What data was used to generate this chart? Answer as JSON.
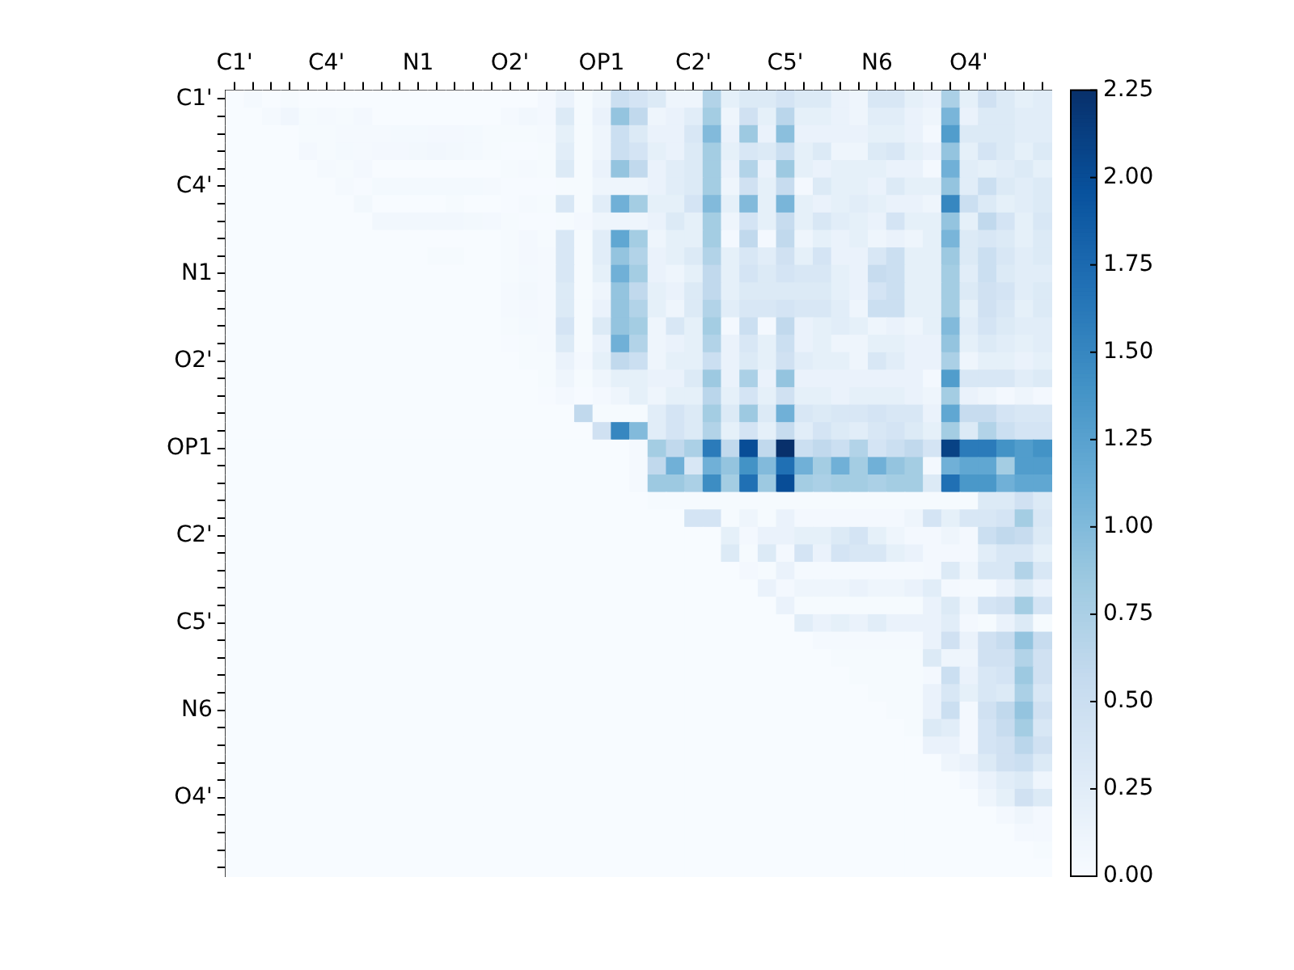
{
  "chart_data": {
    "type": "heatmap",
    "categories": [
      "C1'",
      null,
      null,
      null,
      null,
      "C4'",
      null,
      null,
      null,
      null,
      "N1",
      null,
      null,
      null,
      null,
      "O2'",
      null,
      null,
      null,
      null,
      "OP1",
      null,
      null,
      null,
      null,
      "C2'",
      null,
      null,
      null,
      null,
      "C5'",
      null,
      null,
      null,
      null,
      "N6",
      null,
      null,
      null,
      null,
      "O4'",
      null,
      null,
      null,
      null
    ],
    "y_categories": [
      "C1'",
      null,
      null,
      null,
      null,
      "C4'",
      null,
      null,
      null,
      null,
      "N1",
      null,
      null,
      null,
      null,
      "O2'",
      null,
      null,
      null,
      null,
      "OP1",
      null,
      null,
      null,
      null,
      "C2'",
      null,
      null,
      null,
      null,
      "C5'",
      null,
      null,
      null,
      null,
      "N6",
      null,
      null,
      null,
      null,
      "O4'",
      null,
      null,
      null,
      null
    ],
    "clim": [
      0,
      2.25
    ],
    "cticks": [
      {
        "value": 0,
        "label": "0.00"
      },
      {
        "value": 0.25,
        "label": "0.25"
      },
      {
        "value": 0.5,
        "label": "0.50"
      },
      {
        "value": 0.75,
        "label": "0.75"
      },
      {
        "value": 1,
        "label": "1.00"
      },
      {
        "value": 1.25,
        "label": "1.25"
      },
      {
        "value": 1.5,
        "label": "1.50"
      },
      {
        "value": 1.75,
        "label": "1.75"
      },
      {
        "value": 2,
        "label": "2.00"
      },
      {
        "value": 2.25,
        "label": "2.25"
      }
    ],
    "cells": [
      [
        0,
        0.03,
        0,
        0.02,
        0,
        0,
        0,
        0,
        0,
        0,
        0,
        0,
        0,
        0,
        0,
        0,
        0,
        0.05,
        0.15,
        0.02,
        0.1,
        0.5,
        0.4,
        0.3,
        0.1,
        0.1,
        0.7,
        0.2,
        0.3,
        0.3,
        0.4,
        0.3,
        0.3,
        0.15,
        0.1,
        0.35,
        0.35,
        0.2,
        0.15,
        0.75,
        0.2,
        0.45,
        0.3,
        0.2,
        0.25
      ],
      [
        0,
        0,
        0.03,
        0.08,
        0.02,
        0.03,
        0.02,
        0.05,
        0,
        0,
        0,
        0,
        0,
        0,
        0,
        0.03,
        0.07,
        0.05,
        0.3,
        0.02,
        0.15,
        0.9,
        0.6,
        0.1,
        0.15,
        0.25,
        0.8,
        0.1,
        0.45,
        0.2,
        0.65,
        0.2,
        0.2,
        0.15,
        0.1,
        0.25,
        0.25,
        0.15,
        0.1,
        1.05,
        0.15,
        0.3,
        0.3,
        0.25,
        0.25
      ],
      [
        0,
        0,
        0,
        0,
        0.02,
        0.02,
        0.03,
        0.03,
        0.03,
        0.04,
        0.04,
        0.05,
        0.05,
        0.04,
        0.02,
        0.02,
        0.02,
        0.03,
        0.2,
        0.02,
        0.1,
        0.5,
        0.3,
        0.15,
        0.15,
        0.35,
        1.0,
        0.15,
        0.85,
        0.15,
        0.95,
        0.15,
        0.15,
        0.15,
        0.15,
        0.2,
        0.2,
        0.15,
        0.05,
        1.3,
        0.3,
        0.3,
        0.3,
        0.25,
        0.25
      ],
      [
        0,
        0,
        0,
        0,
        0.05,
        0.02,
        0.04,
        0.03,
        0.05,
        0.05,
        0.06,
        0.07,
        0.06,
        0.04,
        0.02,
        0.01,
        0.01,
        0.02,
        0.25,
        0.02,
        0.1,
        0.5,
        0.4,
        0.2,
        0.15,
        0.3,
        0.8,
        0.2,
        0.35,
        0.3,
        0.5,
        0.2,
        0.3,
        0.1,
        0.1,
        0.3,
        0.35,
        0.2,
        0.15,
        0.9,
        0.2,
        0.4,
        0.3,
        0.2,
        0.3
      ],
      [
        0,
        0,
        0,
        0,
        0,
        0.03,
        0.02,
        0.05,
        0,
        0,
        0,
        0,
        0,
        0,
        0,
        0.02,
        0.03,
        0.02,
        0.3,
        0.02,
        0.15,
        0.9,
        0.6,
        0.15,
        0.25,
        0.3,
        0.8,
        0.15,
        0.7,
        0.15,
        0.85,
        0.2,
        0.15,
        0.2,
        0.2,
        0.2,
        0.15,
        0.15,
        0.05,
        1.1,
        0.25,
        0.2,
        0.25,
        0.3,
        0.2
      ],
      [
        0,
        0,
        0,
        0,
        0,
        0,
        0.03,
        0.01,
        0.04,
        0.04,
        0.04,
        0.04,
        0.04,
        0.04,
        0.03,
        0.01,
        0.01,
        0.01,
        0.02,
        0.02,
        0.1,
        0.1,
        0.1,
        0.15,
        0.25,
        0.3,
        0.8,
        0.1,
        0.45,
        0.2,
        0.55,
        0.05,
        0.3,
        0.2,
        0.2,
        0.15,
        0.3,
        0.2,
        0.2,
        0.9,
        0.25,
        0.5,
        0.3,
        0.25,
        0.3
      ],
      [
        0,
        0,
        0,
        0,
        0,
        0,
        0,
        0.06,
        0,
        0,
        0,
        0,
        0.02,
        0,
        0,
        0.01,
        0.03,
        0.02,
        0.35,
        0.02,
        0.25,
        1.1,
        0.8,
        0.2,
        0.2,
        0.4,
        1.0,
        0.2,
        1.0,
        0.2,
        1.05,
        0.2,
        0.15,
        0.2,
        0.25,
        0.2,
        0.15,
        0.15,
        0.1,
        1.5,
        0.5,
        0.3,
        0.2,
        0.25,
        0.3
      ],
      [
        0,
        0,
        0,
        0,
        0,
        0,
        0,
        0,
        0.07,
        0.07,
        0.07,
        0.07,
        0.07,
        0.06,
        0.05,
        0.02,
        0.01,
        0.01,
        0.02,
        0.05,
        0.1,
        0.1,
        0.1,
        0.15,
        0.3,
        0.2,
        0.8,
        0.1,
        0.4,
        0.2,
        0.55,
        0.2,
        0.35,
        0.25,
        0.2,
        0.15,
        0.4,
        0.2,
        0.2,
        0.9,
        0.2,
        0.6,
        0.4,
        0.2,
        0.35
      ],
      [
        0,
        0,
        0,
        0,
        0,
        0,
        0,
        0,
        0,
        0,
        0,
        0,
        0,
        0,
        0,
        0.02,
        0.05,
        0.02,
        0.35,
        0.02,
        0.25,
        1.2,
        0.8,
        0.1,
        0.2,
        0.2,
        0.8,
        0.05,
        0.6,
        0.05,
        0.6,
        0.1,
        0.2,
        0.15,
        0.2,
        0.1,
        0.15,
        0.1,
        0.2,
        1.05,
        0.3,
        0.35,
        0.3,
        0.2,
        0.3
      ],
      [
        0,
        0,
        0,
        0,
        0,
        0,
        0,
        0,
        0,
        0,
        0,
        0.02,
        0.02,
        0,
        0,
        0.02,
        0.05,
        0.03,
        0.35,
        0.02,
        0.25,
        0.9,
        0.7,
        0.15,
        0.2,
        0.3,
        0.7,
        0.2,
        0.35,
        0.25,
        0.45,
        0.2,
        0.4,
        0.15,
        0.15,
        0.35,
        0.5,
        0.2,
        0.2,
        0.85,
        0.3,
        0.5,
        0.35,
        0.25,
        0.3
      ],
      [
        0,
        0,
        0,
        0,
        0,
        0,
        0,
        0,
        0,
        0,
        0,
        0,
        0,
        0,
        0,
        0.02,
        0.04,
        0.03,
        0.35,
        0.02,
        0.2,
        1.1,
        0.8,
        0.15,
        0.1,
        0.2,
        0.6,
        0.2,
        0.4,
        0.3,
        0.4,
        0.35,
        0.35,
        0.2,
        0.15,
        0.55,
        0.5,
        0.2,
        0.2,
        0.8,
        0.25,
        0.5,
        0.3,
        0.25,
        0.25
      ],
      [
        0,
        0,
        0,
        0,
        0,
        0,
        0,
        0,
        0,
        0,
        0,
        0,
        0,
        0,
        0,
        0.03,
        0.06,
        0.03,
        0.3,
        0.02,
        0.1,
        0.9,
        0.6,
        0.2,
        0.15,
        0.3,
        0.6,
        0.2,
        0.3,
        0.3,
        0.3,
        0.3,
        0.3,
        0.2,
        0.15,
        0.4,
        0.5,
        0.2,
        0.2,
        0.8,
        0.3,
        0.45,
        0.4,
        0.25,
        0.3
      ],
      [
        0,
        0,
        0,
        0,
        0,
        0,
        0,
        0,
        0,
        0,
        0,
        0,
        0,
        0,
        0,
        0.03,
        0.05,
        0.03,
        0.3,
        0.02,
        0.15,
        0.9,
        0.7,
        0.2,
        0.1,
        0.3,
        0.7,
        0.25,
        0.35,
        0.35,
        0.4,
        0.35,
        0.35,
        0.25,
        0.1,
        0.5,
        0.5,
        0.2,
        0.2,
        0.8,
        0.2,
        0.45,
        0.35,
        0.2,
        0.3
      ],
      [
        0,
        0,
        0,
        0,
        0,
        0,
        0,
        0,
        0,
        0,
        0,
        0,
        0,
        0,
        0,
        0.02,
        0.04,
        0.03,
        0.4,
        0.02,
        0.3,
        0.9,
        0.8,
        0.1,
        0.35,
        0.2,
        0.8,
        0.05,
        0.5,
        0.05,
        0.6,
        0.15,
        0.2,
        0.25,
        0.2,
        0.1,
        0.15,
        0.1,
        0.2,
        1.0,
        0.25,
        0.4,
        0.3,
        0.25,
        0.25
      ],
      [
        0,
        0,
        0,
        0,
        0,
        0,
        0,
        0,
        0,
        0,
        0,
        0,
        0,
        0,
        0,
        0.01,
        0.02,
        0.03,
        0.3,
        0.02,
        0.15,
        1.1,
        0.7,
        0.1,
        0.15,
        0.2,
        0.7,
        0.15,
        0.35,
        0.2,
        0.5,
        0.15,
        0.2,
        0.1,
        0.1,
        0.2,
        0.2,
        0.15,
        0.15,
        0.9,
        0.2,
        0.3,
        0.25,
        0.2,
        0.25
      ],
      [
        0,
        0,
        0,
        0,
        0,
        0,
        0,
        0,
        0,
        0,
        0,
        0,
        0,
        0,
        0,
        0,
        0.02,
        0.02,
        0.15,
        0.05,
        0.2,
        0.6,
        0.5,
        0.1,
        0.2,
        0.2,
        0.5,
        0.15,
        0.3,
        0.2,
        0.45,
        0.25,
        0.2,
        0.2,
        0.1,
        0.35,
        0.25,
        0.15,
        0.15,
        0.75,
        0.1,
        0.2,
        0.2,
        0.15,
        0.2
      ],
      [
        0,
        0,
        0,
        0,
        0,
        0,
        0,
        0,
        0,
        0,
        0,
        0,
        0,
        0,
        0,
        0,
        0,
        0.02,
        0.1,
        0.02,
        0.1,
        0.2,
        0.2,
        0.15,
        0.15,
        0.3,
        0.85,
        0.15,
        0.75,
        0.15,
        0.9,
        0.15,
        0.15,
        0.15,
        0.15,
        0.15,
        0.15,
        0.15,
        0.05,
        1.3,
        0.35,
        0.35,
        0.35,
        0.25,
        0.3
      ],
      [
        0,
        0,
        0,
        0,
        0,
        0,
        0,
        0,
        0,
        0,
        0,
        0,
        0,
        0,
        0,
        0,
        0,
        0.01,
        0.05,
        0.01,
        0.05,
        0.1,
        0.2,
        0.1,
        0.2,
        0.2,
        0.65,
        0.2,
        0.4,
        0.2,
        0.45,
        0.2,
        0.2,
        0.15,
        0.2,
        0.2,
        0.2,
        0.15,
        0.1,
        0.8,
        0.15,
        0.1,
        0.05,
        0.1,
        0.05
      ],
      [
        0,
        0,
        0,
        0,
        0,
        0,
        0,
        0,
        0,
        0,
        0,
        0,
        0,
        0,
        0,
        0,
        0,
        0,
        0,
        0.6,
        0.02,
        0.02,
        0.02,
        0.25,
        0.4,
        0.3,
        0.8,
        0.3,
        0.85,
        0.3,
        1.1,
        0.35,
        0.3,
        0.35,
        0.35,
        0.4,
        0.35,
        0.35,
        0.15,
        1.2,
        0.55,
        0.55,
        0.4,
        0.35,
        0.35
      ],
      [
        0,
        0,
        0,
        0,
        0,
        0,
        0,
        0,
        0,
        0,
        0,
        0,
        0,
        0,
        0,
        0,
        0,
        0,
        0,
        0,
        0.45,
        1.5,
        1.0,
        0.25,
        0.4,
        0.3,
        0.7,
        0.2,
        0.4,
        0.2,
        0.55,
        0.25,
        0.4,
        0.3,
        0.25,
        0.35,
        0.4,
        0.3,
        0.2,
        0.8,
        0.3,
        0.7,
        0.5,
        0.4,
        0.4
      ],
      [
        0,
        0,
        0,
        0,
        0,
        0,
        0,
        0,
        0,
        0,
        0,
        0,
        0,
        0,
        0,
        0,
        0,
        0,
        0,
        0,
        0,
        0,
        0.03,
        0.8,
        0.6,
        0.75,
        1.6,
        0.6,
        2.0,
        0.6,
        2.25,
        0.5,
        0.6,
        0.5,
        0.7,
        0.4,
        0.5,
        0.6,
        0.4,
        2.1,
        1.6,
        1.6,
        1.4,
        1.3,
        1.4
      ],
      [
        0,
        0,
        0,
        0,
        0,
        0,
        0,
        0,
        0,
        0,
        0,
        0,
        0,
        0,
        0,
        0,
        0,
        0,
        0,
        0,
        0,
        0,
        0.03,
        0.6,
        1.1,
        0.35,
        1.1,
        0.9,
        1.4,
        1.0,
        1.7,
        1.1,
        0.8,
        1.1,
        0.8,
        1.1,
        0.9,
        0.8,
        0.05,
        1.1,
        1.2,
        1.2,
        0.8,
        1.3,
        1.3
      ],
      [
        0,
        0,
        0,
        0,
        0,
        0,
        0,
        0,
        0,
        0,
        0,
        0,
        0,
        0,
        0,
        0,
        0,
        0,
        0,
        0,
        0,
        0,
        0.03,
        0.85,
        0.85,
        0.75,
        1.45,
        0.8,
        1.7,
        0.85,
        2.0,
        0.8,
        0.75,
        0.8,
        0.8,
        0.75,
        0.8,
        0.8,
        0.3,
        1.7,
        1.35,
        1.35,
        1.1,
        1.2,
        1.2
      ],
      [
        0,
        0,
        0,
        0,
        0,
        0,
        0,
        0,
        0,
        0,
        0,
        0,
        0,
        0,
        0,
        0,
        0,
        0,
        0,
        0,
        0,
        0,
        0,
        0.02,
        0.02,
        0.02,
        0.02,
        0.02,
        0.02,
        0.02,
        0.02,
        0.02,
        0.02,
        0.02,
        0.02,
        0.02,
        0.02,
        0.02,
        0.02,
        0.02,
        0.02,
        0.3,
        0.3,
        0.45,
        0.3
      ],
      [
        0,
        0,
        0,
        0,
        0,
        0,
        0,
        0,
        0,
        0,
        0,
        0,
        0,
        0,
        0,
        0,
        0,
        0,
        0,
        0,
        0,
        0,
        0,
        0,
        0,
        0.4,
        0.4,
        0.02,
        0.1,
        0.02,
        0.15,
        0.05,
        0.05,
        0.05,
        0.05,
        0.05,
        0.05,
        0.1,
        0.4,
        0.2,
        0.35,
        0.35,
        0.4,
        0.8,
        0.35
      ],
      [
        0,
        0,
        0,
        0,
        0,
        0,
        0,
        0,
        0,
        0,
        0,
        0,
        0,
        0,
        0,
        0,
        0,
        0,
        0,
        0,
        0,
        0,
        0,
        0,
        0,
        0,
        0,
        0.2,
        0.05,
        0.15,
        0.15,
        0.2,
        0.2,
        0.3,
        0.4,
        0.2,
        0.1,
        0.05,
        0.05,
        0.1,
        0.05,
        0.5,
        0.6,
        0.55,
        0.3
      ],
      [
        0,
        0,
        0,
        0,
        0,
        0,
        0,
        0,
        0,
        0,
        0,
        0,
        0,
        0,
        0,
        0,
        0,
        0,
        0,
        0,
        0,
        0,
        0,
        0,
        0,
        0,
        0,
        0.3,
        0.02,
        0.3,
        0.05,
        0.4,
        0.15,
        0.4,
        0.35,
        0.35,
        0.2,
        0.15,
        0.05,
        0.05,
        0.05,
        0.25,
        0.35,
        0.35,
        0.2
      ],
      [
        0,
        0,
        0,
        0,
        0,
        0,
        0,
        0,
        0,
        0,
        0,
        0,
        0,
        0,
        0,
        0,
        0,
        0,
        0,
        0,
        0,
        0,
        0,
        0,
        0,
        0,
        0,
        0,
        0.05,
        0.02,
        0.15,
        0.03,
        0.03,
        0.03,
        0.03,
        0.03,
        0.03,
        0.03,
        0.05,
        0.3,
        0.1,
        0.35,
        0.35,
        0.7,
        0.35
      ],
      [
        0,
        0,
        0,
        0,
        0,
        0,
        0,
        0,
        0,
        0,
        0,
        0,
        0,
        0,
        0,
        0,
        0,
        0,
        0,
        0,
        0,
        0,
        0,
        0,
        0,
        0,
        0,
        0,
        0,
        0.15,
        0.05,
        0.1,
        0.1,
        0.1,
        0.15,
        0.1,
        0.1,
        0.15,
        0.25,
        0.05,
        0.03,
        0.03,
        0.15,
        0.3,
        0.15
      ],
      [
        0,
        0,
        0,
        0,
        0,
        0,
        0,
        0,
        0,
        0,
        0,
        0,
        0,
        0,
        0,
        0,
        0,
        0,
        0,
        0,
        0,
        0,
        0,
        0,
        0,
        0,
        0,
        0,
        0,
        0,
        0.15,
        0.02,
        0.02,
        0.02,
        0.02,
        0.02,
        0.02,
        0.02,
        0.15,
        0.3,
        0.1,
        0.4,
        0.45,
        0.8,
        0.4
      ],
      [
        0,
        0,
        0,
        0,
        0,
        0,
        0,
        0,
        0,
        0,
        0,
        0,
        0,
        0,
        0,
        0,
        0,
        0,
        0,
        0,
        0,
        0,
        0,
        0,
        0,
        0,
        0,
        0,
        0,
        0,
        0,
        0.25,
        0.15,
        0.2,
        0.15,
        0.25,
        0.15,
        0.15,
        0.15,
        0.25,
        0.05,
        0.02,
        0.15,
        0.3,
        0.02
      ],
      [
        0,
        0,
        0,
        0,
        0,
        0,
        0,
        0,
        0,
        0,
        0,
        0,
        0,
        0,
        0,
        0,
        0,
        0,
        0,
        0,
        0,
        0,
        0,
        0,
        0,
        0,
        0,
        0,
        0,
        0,
        0,
        0,
        0.03,
        0.03,
        0.03,
        0.03,
        0.03,
        0.03,
        0.15,
        0.45,
        0.15,
        0.45,
        0.55,
        0.9,
        0.55
      ],
      [
        0,
        0,
        0,
        0,
        0,
        0,
        0,
        0,
        0,
        0,
        0,
        0,
        0,
        0,
        0,
        0,
        0,
        0,
        0,
        0,
        0,
        0,
        0,
        0,
        0,
        0,
        0,
        0,
        0,
        0,
        0,
        0,
        0,
        0.02,
        0.02,
        0.02,
        0.02,
        0.02,
        0.3,
        0.1,
        0.1,
        0.45,
        0.45,
        0.7,
        0.45
      ],
      [
        0,
        0,
        0,
        0,
        0,
        0,
        0,
        0,
        0,
        0,
        0,
        0,
        0,
        0,
        0,
        0,
        0,
        0,
        0,
        0,
        0,
        0,
        0,
        0,
        0,
        0,
        0,
        0,
        0,
        0,
        0,
        0,
        0,
        0,
        0.02,
        0.02,
        0.02,
        0.02,
        0.05,
        0.5,
        0.15,
        0.35,
        0.4,
        0.85,
        0.45
      ],
      [
        0,
        0,
        0,
        0,
        0,
        0,
        0,
        0,
        0,
        0,
        0,
        0,
        0,
        0,
        0,
        0,
        0,
        0,
        0,
        0,
        0,
        0,
        0,
        0,
        0,
        0,
        0,
        0,
        0,
        0,
        0,
        0,
        0,
        0,
        0,
        0.02,
        0.02,
        0.02,
        0.15,
        0.35,
        0.2,
        0.35,
        0.3,
        0.75,
        0.35
      ],
      [
        0,
        0,
        0,
        0,
        0,
        0,
        0,
        0,
        0,
        0,
        0,
        0,
        0,
        0,
        0,
        0,
        0,
        0,
        0,
        0,
        0,
        0,
        0,
        0,
        0,
        0,
        0,
        0,
        0,
        0,
        0,
        0,
        0,
        0,
        0,
        0,
        0.02,
        0.02,
        0.15,
        0.5,
        0.05,
        0.45,
        0.6,
        0.9,
        0.45
      ],
      [
        0,
        0,
        0,
        0,
        0,
        0,
        0,
        0,
        0,
        0,
        0,
        0,
        0,
        0,
        0,
        0,
        0,
        0,
        0,
        0,
        0,
        0,
        0,
        0,
        0,
        0,
        0,
        0,
        0,
        0,
        0,
        0,
        0,
        0,
        0,
        0,
        0,
        0.02,
        0.3,
        0.25,
        0.05,
        0.4,
        0.55,
        0.8,
        0.35
      ],
      [
        0,
        0,
        0,
        0,
        0,
        0,
        0,
        0,
        0,
        0,
        0,
        0,
        0,
        0,
        0,
        0,
        0,
        0,
        0,
        0,
        0,
        0,
        0,
        0,
        0,
        0,
        0,
        0,
        0,
        0,
        0,
        0,
        0,
        0,
        0,
        0,
        0,
        0,
        0.15,
        0.15,
        0.05,
        0.4,
        0.45,
        0.65,
        0.45
      ],
      [
        0,
        0,
        0,
        0,
        0,
        0,
        0,
        0,
        0,
        0,
        0,
        0,
        0,
        0,
        0,
        0,
        0,
        0,
        0,
        0,
        0,
        0,
        0,
        0,
        0,
        0,
        0,
        0,
        0,
        0,
        0,
        0,
        0,
        0,
        0,
        0,
        0,
        0,
        0,
        0.1,
        0.15,
        0.3,
        0.45,
        0.5,
        0.3
      ],
      [
        0,
        0,
        0,
        0,
        0,
        0,
        0,
        0,
        0,
        0,
        0,
        0,
        0,
        0,
        0,
        0,
        0,
        0,
        0,
        0,
        0,
        0,
        0,
        0,
        0,
        0,
        0,
        0,
        0,
        0,
        0,
        0,
        0,
        0,
        0,
        0,
        0,
        0,
        0,
        0,
        0.05,
        0.15,
        0.25,
        0.3,
        0.1
      ],
      [
        0,
        0,
        0,
        0,
        0,
        0,
        0,
        0,
        0,
        0,
        0,
        0,
        0,
        0,
        0,
        0,
        0,
        0,
        0,
        0,
        0,
        0,
        0,
        0,
        0,
        0,
        0,
        0,
        0,
        0,
        0,
        0,
        0,
        0,
        0,
        0,
        0,
        0,
        0,
        0,
        0,
        0.1,
        0.2,
        0.45,
        0.3
      ],
      [
        0,
        0,
        0,
        0,
        0,
        0,
        0,
        0,
        0,
        0,
        0,
        0,
        0,
        0,
        0,
        0,
        0,
        0,
        0,
        0,
        0,
        0,
        0,
        0,
        0,
        0,
        0,
        0,
        0,
        0,
        0,
        0,
        0,
        0,
        0,
        0,
        0,
        0,
        0,
        0,
        0,
        0,
        0.05,
        0.1,
        0.05
      ],
      [
        0,
        0,
        0,
        0,
        0,
        0,
        0,
        0,
        0,
        0,
        0,
        0,
        0,
        0,
        0,
        0,
        0,
        0,
        0,
        0,
        0,
        0,
        0,
        0,
        0,
        0,
        0,
        0,
        0,
        0,
        0,
        0,
        0,
        0,
        0,
        0,
        0,
        0,
        0,
        0,
        0,
        0,
        0,
        0.05,
        0.05
      ],
      [
        0,
        0,
        0,
        0,
        0,
        0,
        0,
        0,
        0,
        0,
        0,
        0,
        0,
        0,
        0,
        0,
        0,
        0,
        0,
        0,
        0,
        0,
        0,
        0,
        0,
        0,
        0,
        0,
        0,
        0,
        0,
        0,
        0,
        0,
        0,
        0,
        0,
        0,
        0,
        0,
        0,
        0,
        0,
        0,
        0.02
      ],
      [
        0,
        0,
        0,
        0,
        0,
        0,
        0,
        0,
        0,
        0,
        0,
        0,
        0,
        0,
        0,
        0,
        0,
        0,
        0,
        0,
        0,
        0,
        0,
        0,
        0,
        0,
        0,
        0,
        0,
        0,
        0,
        0,
        0,
        0,
        0,
        0,
        0,
        0,
        0,
        0,
        0,
        0,
        0,
        0,
        0
      ]
    ]
  }
}
